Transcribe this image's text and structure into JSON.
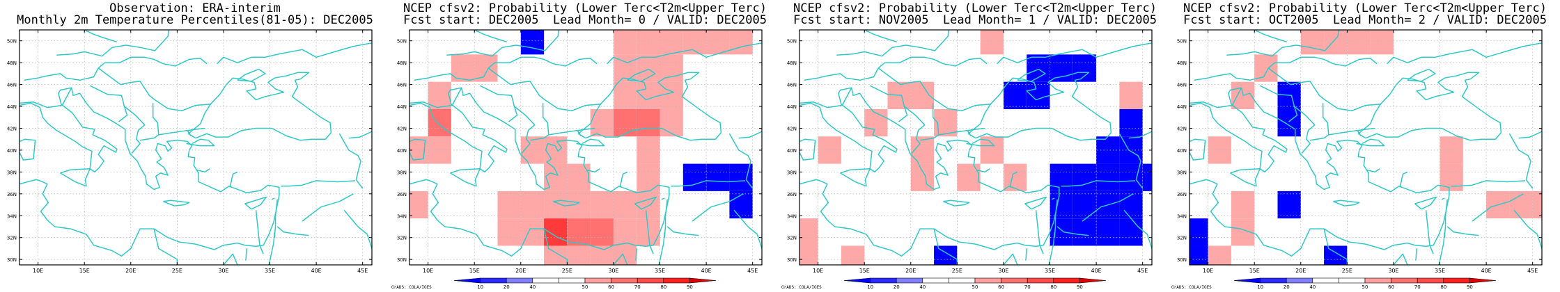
{
  "panels": [
    {
      "title_line1": "Observation: ERA-interim",
      "title_line2": "Monthly 2m Temperature Percentiles(81-05): DEC2005",
      "has_colorbar": false,
      "cells": []
    },
    {
      "title_line1": "NCEP cfsv2: Probability (Lower Terc<T2m<Upper Terc)",
      "title_line2": "Fcst start: DEC2005  Lead Month= 0 / VALID: DEC2005",
      "has_colorbar": true,
      "cells": [
        {
          "lon": 21.25,
          "lat": 50.0,
          "value": 15
        },
        {
          "lon": 31.25,
          "lat": 50.0,
          "value": 45
        },
        {
          "lon": 33.75,
          "lat": 50.0,
          "value": 45
        },
        {
          "lon": 36.25,
          "lat": 50.0,
          "value": 45
        },
        {
          "lon": 38.75,
          "lat": 50.0,
          "value": 45
        },
        {
          "lon": 41.25,
          "lat": 50.0,
          "value": 45
        },
        {
          "lon": 43.75,
          "lat": 50.0,
          "value": 45
        },
        {
          "lon": 31.25,
          "lat": 47.5,
          "value": 45
        },
        {
          "lon": 33.75,
          "lat": 47.5,
          "value": 45
        },
        {
          "lon": 36.25,
          "lat": 47.5,
          "value": 45
        },
        {
          "lon": 13.75,
          "lat": 47.5,
          "value": 45
        },
        {
          "lon": 16.25,
          "lat": 47.5,
          "value": 45
        },
        {
          "lon": 31.25,
          "lat": 45.0,
          "value": 45
        },
        {
          "lon": 33.75,
          "lat": 45.0,
          "value": 45
        },
        {
          "lon": 36.25,
          "lat": 45.0,
          "value": 45
        },
        {
          "lon": 11.25,
          "lat": 45.0,
          "value": 45
        },
        {
          "lon": 31.25,
          "lat": 42.5,
          "value": 55
        },
        {
          "lon": 33.75,
          "lat": 42.5,
          "value": 55
        },
        {
          "lon": 36.25,
          "lat": 42.5,
          "value": 45
        },
        {
          "lon": 28.75,
          "lat": 42.5,
          "value": 45
        },
        {
          "lon": 11.25,
          "lat": 42.5,
          "value": 55
        },
        {
          "lon": 8.75,
          "lat": 40.0,
          "value": 45
        },
        {
          "lon": 11.25,
          "lat": 40.0,
          "value": 45
        },
        {
          "lon": 21.25,
          "lat": 40.0,
          "value": 45
        },
        {
          "lon": 23.75,
          "lat": 40.0,
          "value": 45
        },
        {
          "lon": 33.75,
          "lat": 40.0,
          "value": 45
        },
        {
          "lon": 23.75,
          "lat": 37.5,
          "value": 45
        },
        {
          "lon": 26.25,
          "lat": 37.5,
          "value": 45
        },
        {
          "lon": 33.75,
          "lat": 37.5,
          "value": 45
        },
        {
          "lon": 38.75,
          "lat": 37.5,
          "value": 15
        },
        {
          "lon": 41.25,
          "lat": 37.5,
          "value": 15
        },
        {
          "lon": 43.75,
          "lat": 37.5,
          "value": 15
        },
        {
          "lon": 8.75,
          "lat": 35.0,
          "value": 45
        },
        {
          "lon": 18.75,
          "lat": 35.0,
          "value": 45
        },
        {
          "lon": 21.25,
          "lat": 35.0,
          "value": 45
        },
        {
          "lon": 23.75,
          "lat": 35.0,
          "value": 45
        },
        {
          "lon": 26.25,
          "lat": 35.0,
          "value": 45
        },
        {
          "lon": 28.75,
          "lat": 35.0,
          "value": 45
        },
        {
          "lon": 31.25,
          "lat": 35.0,
          "value": 45
        },
        {
          "lon": 33.75,
          "lat": 35.0,
          "value": 45
        },
        {
          "lon": 43.75,
          "lat": 35.0,
          "value": 15
        },
        {
          "lon": 18.75,
          "lat": 32.5,
          "value": 45
        },
        {
          "lon": 21.25,
          "lat": 32.5,
          "value": 45
        },
        {
          "lon": 23.75,
          "lat": 32.5,
          "value": 65
        },
        {
          "lon": 26.25,
          "lat": 32.5,
          "value": 55
        },
        {
          "lon": 28.75,
          "lat": 32.5,
          "value": 55
        },
        {
          "lon": 31.25,
          "lat": 32.5,
          "value": 45
        },
        {
          "lon": 33.75,
          "lat": 32.5,
          "value": 45
        },
        {
          "lon": 23.75,
          "lat": 30.0,
          "value": 45
        },
        {
          "lon": 26.25,
          "lat": 30.0,
          "value": 45
        },
        {
          "lon": 28.75,
          "lat": 30.0,
          "value": 45
        },
        {
          "lon": 31.25,
          "lat": 30.0,
          "value": 45
        }
      ]
    },
    {
      "title_line1": "NCEP cfsv2: Probability (Lower Terc<T2m<Upper Terc)",
      "title_line2": "Fcst start: NOV2005  Lead Month= 1 / VALID: DEC2005",
      "has_colorbar": true,
      "cells": [
        {
          "lon": 28.75,
          "lat": 50.0,
          "value": 45
        },
        {
          "lon": 33.75,
          "lat": 47.5,
          "value": 15
        },
        {
          "lon": 36.25,
          "lat": 47.5,
          "value": 15
        },
        {
          "lon": 38.75,
          "lat": 47.5,
          "value": 15
        },
        {
          "lon": 18.75,
          "lat": 45.0,
          "value": 45
        },
        {
          "lon": 21.25,
          "lat": 45.0,
          "value": 45
        },
        {
          "lon": 31.25,
          "lat": 45.0,
          "value": 15
        },
        {
          "lon": 33.75,
          "lat": 45.0,
          "value": 15
        },
        {
          "lon": 43.75,
          "lat": 45.0,
          "value": 45
        },
        {
          "lon": 16.25,
          "lat": 42.5,
          "value": 45
        },
        {
          "lon": 23.75,
          "lat": 42.5,
          "value": 45
        },
        {
          "lon": 43.75,
          "lat": 42.5,
          "value": 15
        },
        {
          "lon": 11.25,
          "lat": 40.0,
          "value": 45
        },
        {
          "lon": 21.25,
          "lat": 40.0,
          "value": 45
        },
        {
          "lon": 28.75,
          "lat": 40.0,
          "value": 45
        },
        {
          "lon": 41.25,
          "lat": 40.0,
          "value": 15
        },
        {
          "lon": 43.75,
          "lat": 40.0,
          "value": 15
        },
        {
          "lon": 21.25,
          "lat": 37.5,
          "value": 45
        },
        {
          "lon": 26.25,
          "lat": 37.5,
          "value": 45
        },
        {
          "lon": 31.25,
          "lat": 37.5,
          "value": 45
        },
        {
          "lon": 36.25,
          "lat": 37.5,
          "value": 15
        },
        {
          "lon": 38.75,
          "lat": 37.5,
          "value": 15
        },
        {
          "lon": 41.25,
          "lat": 37.5,
          "value": 15
        },
        {
          "lon": 43.75,
          "lat": 37.5,
          "value": 15
        },
        {
          "lon": 46.25,
          "lat": 37.5,
          "value": 15
        },
        {
          "lon": 36.25,
          "lat": 35.0,
          "value": 15
        },
        {
          "lon": 38.75,
          "lat": 35.0,
          "value": 15
        },
        {
          "lon": 41.25,
          "lat": 35.0,
          "value": 15
        },
        {
          "lon": 43.75,
          "lat": 35.0,
          "value": 15
        },
        {
          "lon": 8.75,
          "lat": 32.5,
          "value": 45
        },
        {
          "lon": 36.25,
          "lat": 32.5,
          "value": 15
        },
        {
          "lon": 38.75,
          "lat": 32.5,
          "value": 15
        },
        {
          "lon": 41.25,
          "lat": 32.5,
          "value": 15
        },
        {
          "lon": 43.75,
          "lat": 32.5,
          "value": 15
        },
        {
          "lon": 8.75,
          "lat": 30.0,
          "value": 45
        },
        {
          "lon": 13.75,
          "lat": 30.0,
          "value": 45
        },
        {
          "lon": 23.75,
          "lat": 30.0,
          "value": 15
        }
      ]
    },
    {
      "title_line1": "NCEP cfsv2: Probability (Lower Terc<T2m<Upper Terc)",
      "title_line2": "Fcst start: OCT2005  Lead Month= 2 / VALID: DEC2005",
      "has_colorbar": true,
      "cells": [
        {
          "lon": 21.25,
          "lat": 50.0,
          "value": 45
        },
        {
          "lon": 23.75,
          "lat": 50.0,
          "value": 45
        },
        {
          "lon": 26.25,
          "lat": 50.0,
          "value": 45
        },
        {
          "lon": 28.75,
          "lat": 50.0,
          "value": 45
        },
        {
          "lon": 16.25,
          "lat": 47.5,
          "value": 45
        },
        {
          "lon": 13.75,
          "lat": 45.0,
          "value": 45
        },
        {
          "lon": 18.75,
          "lat": 45.0,
          "value": 15
        },
        {
          "lon": 18.75,
          "lat": 42.5,
          "value": 15
        },
        {
          "lon": 11.25,
          "lat": 40.0,
          "value": 45
        },
        {
          "lon": 36.25,
          "lat": 40.0,
          "value": 45
        },
        {
          "lon": 36.25,
          "lat": 37.5,
          "value": 45
        },
        {
          "lon": 13.75,
          "lat": 35.0,
          "value": 45
        },
        {
          "lon": 18.75,
          "lat": 35.0,
          "value": 15
        },
        {
          "lon": 41.25,
          "lat": 35.0,
          "value": 45
        },
        {
          "lon": 43.75,
          "lat": 35.0,
          "value": 45
        },
        {
          "lon": 46.25,
          "lat": 35.0,
          "value": 45
        },
        {
          "lon": 8.75,
          "lat": 32.5,
          "value": 15
        },
        {
          "lon": 13.75,
          "lat": 32.5,
          "value": 45
        },
        {
          "lon": 11.25,
          "lat": 30.0,
          "value": 45
        },
        {
          "lon": 8.75,
          "lat": 30.0,
          "value": 15
        },
        {
          "lon": 23.75,
          "lat": 30.0,
          "value": 15
        }
      ]
    }
  ],
  "map": {
    "lon_range": [
      8,
      46
    ],
    "lat_range": [
      29.5,
      51
    ],
    "lon_ticks": [
      "10E",
      "15E",
      "20E",
      "25E",
      "30E",
      "35E",
      "40E",
      "45E"
    ],
    "lat_ticks": [
      "30N",
      "32N",
      "34N",
      "36N",
      "38N",
      "40N",
      "42N",
      "44N",
      "46N",
      "48N",
      "50N"
    ],
    "cell_size_deg": 2.5
  },
  "colorbar": {
    "labels": [
      "10",
      "20",
      "40",
      "50",
      "60",
      "70",
      "80",
      "90"
    ],
    "colors": [
      "#0000ff",
      "#2a2aff",
      "#7f7fff",
      "#ffffff",
      "#ffffff",
      "#ff9f9f",
      "#ff7070",
      "#ff4a4a",
      "#ff2020",
      "#dd0000"
    ]
  },
  "credit": "GrADS: COLA/IGES",
  "style": {
    "coast_color": "#30c8c8",
    "grid_color": "#b8b8b8"
  }
}
